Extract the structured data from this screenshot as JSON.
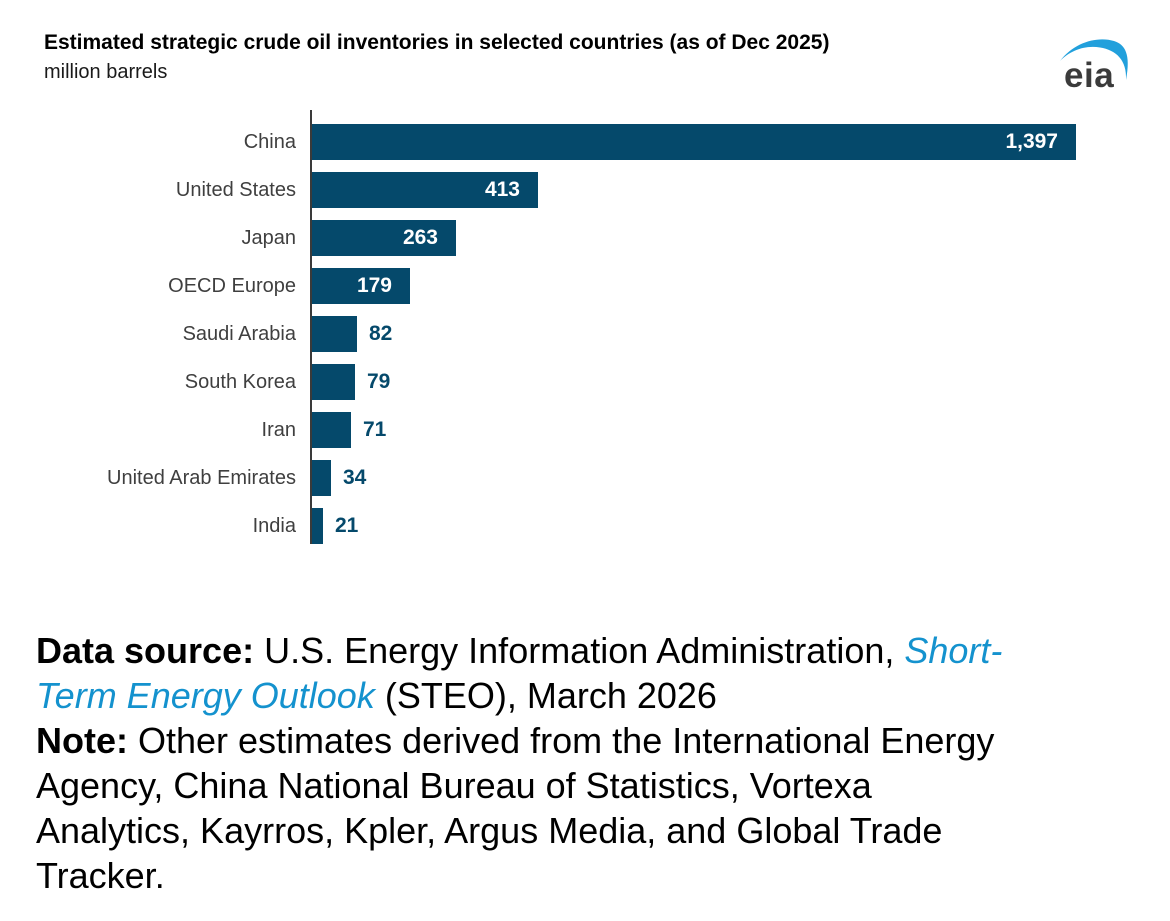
{
  "header": {
    "title": "Estimated strategic crude oil inventories in selected countries (as of Dec 2025)",
    "subtitle": "million barrels",
    "logo_text": "eia"
  },
  "chart_data": {
    "type": "bar",
    "orientation": "horizontal",
    "title": "Estimated strategic crude oil inventories in selected countries (as of Dec 2025)",
    "unit": "million barrels",
    "categories": [
      "China",
      "United States",
      "Japan",
      "OECD Europe",
      "Saudi Arabia",
      "South Korea",
      "Iran",
      "United Arab Emirates",
      "India"
    ],
    "values": [
      1397,
      413,
      263,
      179,
      82,
      79,
      71,
      34,
      21
    ],
    "value_labels": [
      "1,397",
      "413",
      "263",
      "179",
      "82",
      "79",
      "71",
      "34",
      "21"
    ],
    "xlim": [
      0,
      1397
    ],
    "grid": false,
    "legend": false,
    "bar_color": "#05496b",
    "inside_label_threshold": 100
  },
  "footer": {
    "data_source_label": "Data source:",
    "data_source_text": " U.S. Energy Information Administration, ",
    "link_text": "Short-Term Energy Outlook",
    "data_source_suffix": " (STEO), March 2026",
    "note_label": "Note:",
    "note_text": " Other estimates derived from the International Energy Agency, China National Bureau of Statistics, Vortexa Analytics, Kayrros, Kpler, Argus Media, and Global Trade Tracker."
  },
  "colors": {
    "bar": "#05496b",
    "value_label_inside": "#ffffff",
    "value_label_outside": "#05496b",
    "category_label": "#3f3f3f",
    "axis": "#3a3a3a",
    "link_blue": "#1492ce",
    "logo_blue": "#22a0dc",
    "logo_gray": "#3b3b3b",
    "title_black": "#000000",
    "background": "#ffffff"
  }
}
